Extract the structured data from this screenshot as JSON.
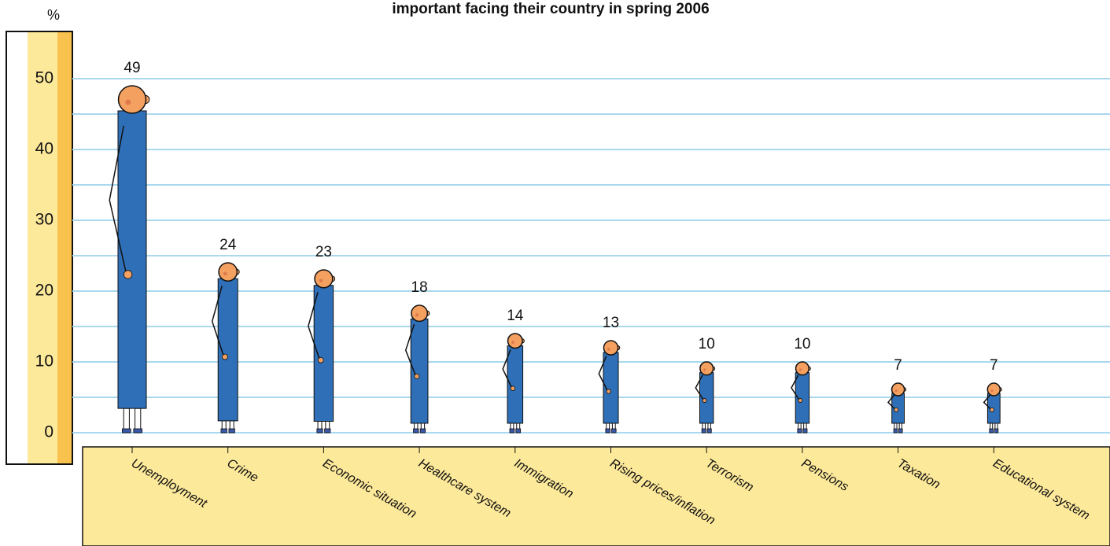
{
  "chart_data": {
    "type": "pictogram",
    "title": "important facing their country in spring 2006",
    "y_label": "%",
    "categories": [
      "Unemployment",
      "Crime",
      "Economic situation",
      "Healthcare system",
      "Immigration",
      "Rising prices/inflation",
      "Terrorism",
      "Pensions",
      "Taxation",
      "Educational system"
    ],
    "values": [
      49,
      24,
      23,
      18,
      14,
      13,
      10,
      10,
      7,
      7
    ],
    "color": "#2e6fb7",
    "head_color": "#f4a060",
    "ylim": [
      0,
      50
    ],
    "yticks": [
      0,
      10,
      20,
      30,
      40,
      50
    ],
    "minor_yticks": [
      5,
      15,
      25,
      35,
      45
    ],
    "grid": true,
    "grid_color": "#a9d8ef"
  }
}
